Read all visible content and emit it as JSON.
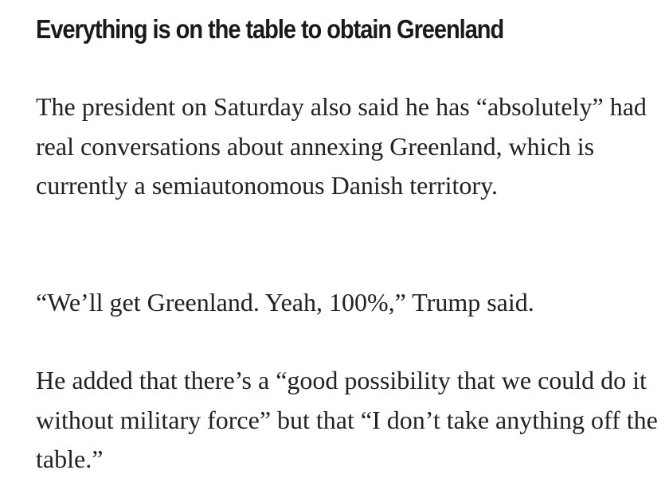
{
  "heading": "Everything is on the table to obtain Greenland",
  "paragraphs": [
    "The president on Saturday also said he has “absolutely” had real conversations about annexing Greenland, which is currently a semiautonomous Danish territory.",
    "“We’ll get Greenland. Yeah, 100%,” Trump said.",
    "He added that there’s a “good possibility that we could do it without military force” but that “I don’t take anything off the table.”"
  ]
}
